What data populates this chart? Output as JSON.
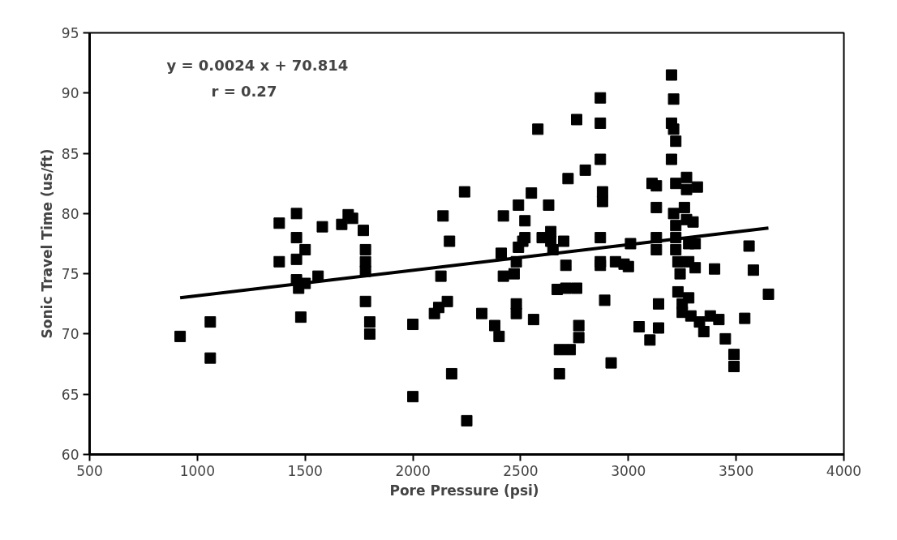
{
  "chart_data": {
    "type": "scatter",
    "xlabel": "Pore Pressure  (psi)",
    "ylabel": "Sonic Travel Time (us/ft)",
    "annotations": [
      "y = 0.0024 x + 70.814",
      "r = 0.27"
    ],
    "xlim": [
      500,
      4000
    ],
    "xticks": [
      500,
      1000,
      1500,
      2000,
      2500,
      3000,
      3500,
      4000
    ],
    "ylim": [
      60,
      95
    ],
    "yticks": [
      60,
      65,
      70,
      75,
      80,
      85,
      90,
      95
    ],
    "grid": false,
    "series": [
      {
        "color": "#000000",
        "marker": "square",
        "x": [
          920,
          1060,
          1060,
          1380,
          1380,
          1460,
          1460,
          1460,
          1460,
          1470,
          1480,
          1500,
          1500,
          1560,
          1580,
          1670,
          1700,
          1720,
          1770,
          1780,
          1780,
          1780,
          1780,
          1800,
          1800,
          2000,
          2000,
          2100,
          2120,
          2130,
          2140,
          2160,
          2170,
          2180,
          2240,
          2250,
          2320,
          2380,
          2400,
          2410,
          2420,
          2420,
          2470,
          2480,
          2480,
          2480,
          2490,
          2490,
          2510,
          2520,
          2520,
          2550,
          2560,
          2580,
          2600,
          2630,
          2640,
          2640,
          2650,
          2670,
          2680,
          2680,
          2700,
          2710,
          2710,
          2720,
          2730,
          2760,
          2760,
          2770,
          2770,
          2800,
          2870,
          2870,
          2870,
          2880,
          2880,
          2870,
          2870,
          2870,
          2890,
          2920,
          2940,
          2980,
          3000,
          3010,
          3050,
          3100,
          3110,
          3130,
          3130,
          3130,
          3130,
          3140,
          3140,
          3200,
          3200,
          3200,
          3210,
          3210,
          3220,
          3220,
          3210,
          3220,
          3220,
          3220,
          3230,
          3230,
          3240,
          3250,
          3250,
          3260,
          3270,
          3270,
          3270,
          3280,
          3280,
          3280,
          3290,
          3300,
          3310,
          3310,
          3320,
          3330,
          3350,
          3380,
          3400,
          3420,
          3450,
          3490,
          3490,
          3540,
          3560,
          3580,
          3650
        ],
        "values": [
          69.8,
          71,
          68,
          79.2,
          76,
          80,
          78,
          76.2,
          74.5,
          73.8,
          71.4,
          77,
          74.2,
          74.8,
          78.9,
          79.1,
          79.9,
          79.6,
          78.6,
          77,
          76,
          75.2,
          72.7,
          71,
          70,
          70.8,
          64.8,
          71.7,
          72.2,
          74.8,
          79.8,
          72.7,
          77.7,
          66.7,
          81.8,
          62.8,
          71.7,
          70.7,
          69.8,
          76.7,
          74.8,
          79.8,
          75,
          72.5,
          71.7,
          76,
          77.2,
          80.7,
          77.7,
          78,
          79.4,
          81.7,
          71.2,
          87,
          78,
          80.7,
          78.5,
          77.7,
          77,
          73.7,
          68.7,
          66.7,
          77.7,
          75.7,
          73.8,
          82.9,
          68.7,
          87.8,
          73.8,
          70.7,
          69.7,
          83.6,
          89.6,
          87.5,
          84.5,
          81.8,
          81,
          78,
          76,
          75.7,
          72.8,
          67.6,
          76,
          75.8,
          75.6,
          77.5,
          70.6,
          69.5,
          82.5,
          82.3,
          80.5,
          78,
          77,
          72.5,
          70.5,
          91.5,
          87.5,
          84.5,
          89.5,
          87,
          86,
          82.5,
          80,
          79,
          78,
          77,
          76,
          73.5,
          75,
          72.5,
          71.8,
          80.5,
          83,
          82,
          79.5,
          77.5,
          76,
          73,
          71.5,
          79.3,
          77.5,
          75.5,
          82.2,
          71,
          70.2,
          71.5,
          75.4,
          71.2,
          69.6,
          68.3,
          67.3,
          71.3,
          77.3,
          75.3,
          73.3
        ]
      },
      {
        "type": "line",
        "color": "#000000",
        "line_style": "solid",
        "marker": "none",
        "x": [
          920,
          3650
        ],
        "values": [
          73.0,
          78.8
        ]
      }
    ]
  }
}
